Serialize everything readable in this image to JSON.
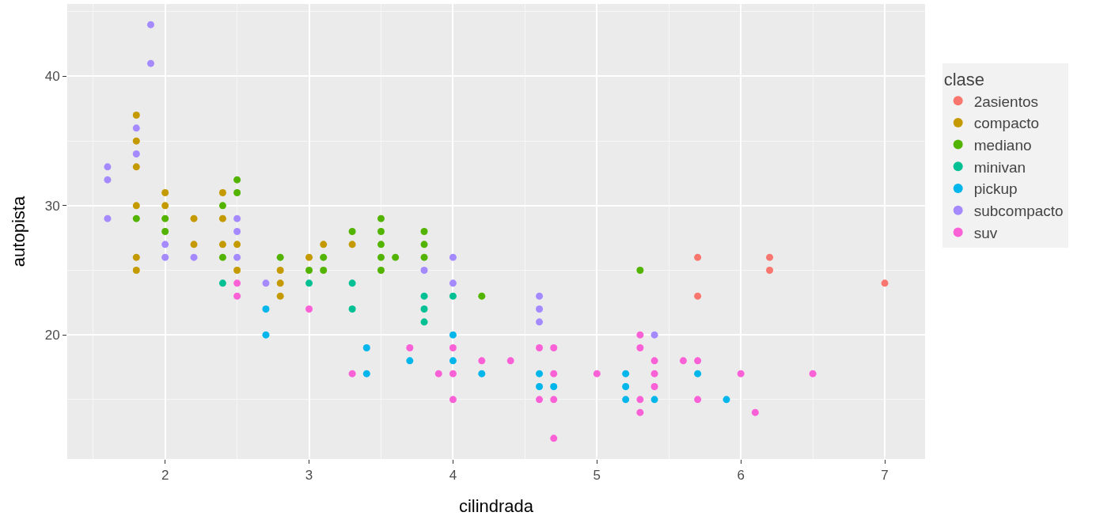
{
  "chart_data": {
    "type": "scatter",
    "xlabel": "cilindrada",
    "ylabel": "autopista",
    "legend_title": "clase",
    "legend": "right",
    "grid": true,
    "marker": "circle",
    "xlim": [
      1.32,
      7.28
    ],
    "xticks": [
      2,
      3,
      4,
      5,
      6,
      7
    ],
    "ylim": [
      10.4,
      45.6
    ],
    "yticks": [
      20,
      30,
      40
    ],
    "series": [
      {
        "name": "2asientos",
        "color": "#f8766d",
        "x": [
          5.7,
          5.7,
          6.2,
          6.2,
          7
        ],
        "values": [
          26,
          23,
          26,
          25,
          24
        ]
      },
      {
        "name": "compacto",
        "color": "#c49a00",
        "x": [
          1.8,
          1.8,
          1.8,
          1.8,
          1.8,
          1.8,
          2,
          2,
          2.2,
          2.2,
          2.4,
          2.4,
          2.4,
          2.5,
          2.5,
          2.8,
          2.8,
          2.8,
          3,
          3.1,
          3.3
        ],
        "values": [
          37,
          35,
          33,
          30,
          26,
          25,
          31,
          30,
          29,
          27,
          31,
          29,
          27,
          27,
          25,
          25,
          24,
          23,
          26,
          27,
          27
        ]
      },
      {
        "name": "mediano",
        "color": "#53b400",
        "x": [
          1.8,
          2,
          2,
          2.4,
          2.4,
          2.5,
          2.5,
          2.8,
          3,
          3.1,
          3.1,
          3.3,
          3.5,
          3.5,
          3.5,
          3.5,
          3.5,
          3.6,
          3.8,
          3.8,
          3.8,
          4.2,
          5.3
        ],
        "values": [
          29,
          29,
          28,
          30,
          26,
          32,
          31,
          26,
          25,
          26,
          25,
          28,
          29,
          28,
          27,
          26,
          25,
          26,
          28,
          27,
          26,
          23,
          25
        ]
      },
      {
        "name": "minivan",
        "color": "#00c094",
        "x": [
          2.4,
          3,
          3.3,
          3.3,
          3.8,
          3.8,
          3.8,
          4
        ],
        "values": [
          24,
          24,
          24,
          22,
          23,
          22,
          21,
          23
        ]
      },
      {
        "name": "pickup",
        "color": "#00b6eb",
        "x": [
          2.7,
          2.7,
          3.4,
          3.4,
          3.7,
          4,
          4,
          4.2,
          4.6,
          4.6,
          4.7,
          5.2,
          5.2,
          5.2,
          5.4,
          5.7,
          5.9
        ],
        "values": [
          22,
          20,
          19,
          17,
          18,
          20,
          18,
          17,
          17,
          16,
          16,
          17,
          16,
          15,
          15,
          17,
          15
        ]
      },
      {
        "name": "subcompacto",
        "color": "#a58aff",
        "x": [
          1.6,
          1.6,
          1.6,
          1.8,
          1.8,
          1.9,
          1.9,
          2,
          2,
          2.2,
          2.5,
          2.5,
          2.5,
          2.7,
          3.8,
          4,
          4,
          4.6,
          4.6,
          4.6,
          5.4
        ],
        "values": [
          33,
          32,
          29,
          36,
          34,
          44,
          41,
          27,
          26,
          26,
          29,
          28,
          26,
          24,
          25,
          26,
          24,
          23,
          22,
          21,
          20
        ]
      },
      {
        "name": "suv",
        "color": "#fb61d7",
        "x": [
          2.5,
          2.5,
          3,
          3.3,
          3.7,
          3.9,
          4,
          4,
          4,
          4.2,
          4.4,
          4.6,
          4.6,
          4.7,
          4.7,
          4.7,
          4.7,
          5,
          5.3,
          5.3,
          5.3,
          5.3,
          5.4,
          5.4,
          5.4,
          5.6,
          5.7,
          5.7,
          6,
          6.1,
          6.5
        ],
        "values": [
          24,
          23,
          22,
          17,
          19,
          17,
          19,
          17,
          15,
          18,
          18,
          19,
          15,
          19,
          17,
          15,
          12,
          17,
          20,
          19,
          15,
          14,
          18,
          17,
          16,
          18,
          18,
          15,
          17,
          14,
          17
        ]
      }
    ]
  }
}
